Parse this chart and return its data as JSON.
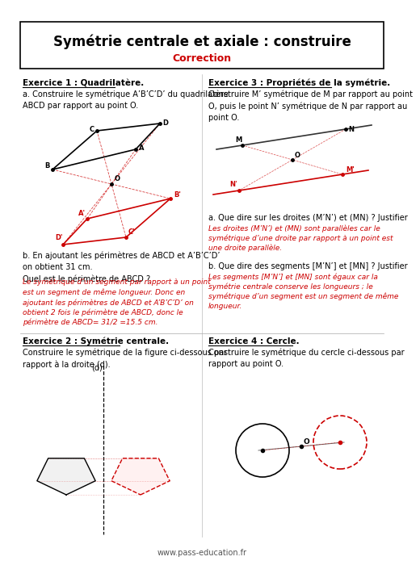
{
  "title": "Symétrie centrale et axiale : construire",
  "subtitle": "Correction",
  "bg_color": "#ffffff",
  "border_color": "#000000",
  "ex1_title": "Exercice 1 : Quadrilatère.",
  "ex1a_text": "a. Construire le symétrique A’B’C’D’ du quadrilatère\nABCD par rapport au point O.",
  "ex1b_text": "b. En ajoutant les périmètres de ABCD et A’B’C’D’\non obtient 31 cm.\nQuel est le périmètre de ABCD ?",
  "ex1b_answer": "Le symétrique d’un segment par rapport à un point\nest un segment de même longueur. Donc en\najoutant les périmètres de ABCD et A’B’C’D’ on\nobtient 2 fois le périmètre de ABCD, donc le\npérimètre de ABCD= 31/2 =15.5 cm.",
  "ex2_title": "Exercice 2 : Symétrie centrale.",
  "ex2_text": "Construire le symétrique de la figure ci-dessous par\nrapport à la droite (d).",
  "ex3_title": "Exercice 3 : Propriétés de la symétrie.",
  "ex3_text": "Construire M’ symétrique de M par rapport au point\nO, puis le point N’ symétrique de N par rapport au\npoint O.",
  "ex3a_text": "a. Que dire sur les droites (M’N’) et (MN) ? Justifier",
  "ex3a_answer": "Les droites (M’N’) et (MN) sont parallèles car le\nsymétrique d’une droite par rapport à un point est\nune droite parallèle.",
  "ex3b_text": "b. Que dire des segments [M’N’] et [MN] ? Justifier",
  "ex3b_answer": "Les segments [M’N’] et [MN] sont égaux car la\nsymétrie centrale conserve les longueurs ; le\nsymétrique d’un segment est un segment de même\nlongueur.",
  "ex4_title": "Exercice 4 : Cercle.",
  "ex4_text": "Construire le symétrique du cercle ci-dessous par\nrapport au point O.",
  "footer": "www.pass-education.fr",
  "red_color": "#cc0000",
  "black_color": "#000000"
}
